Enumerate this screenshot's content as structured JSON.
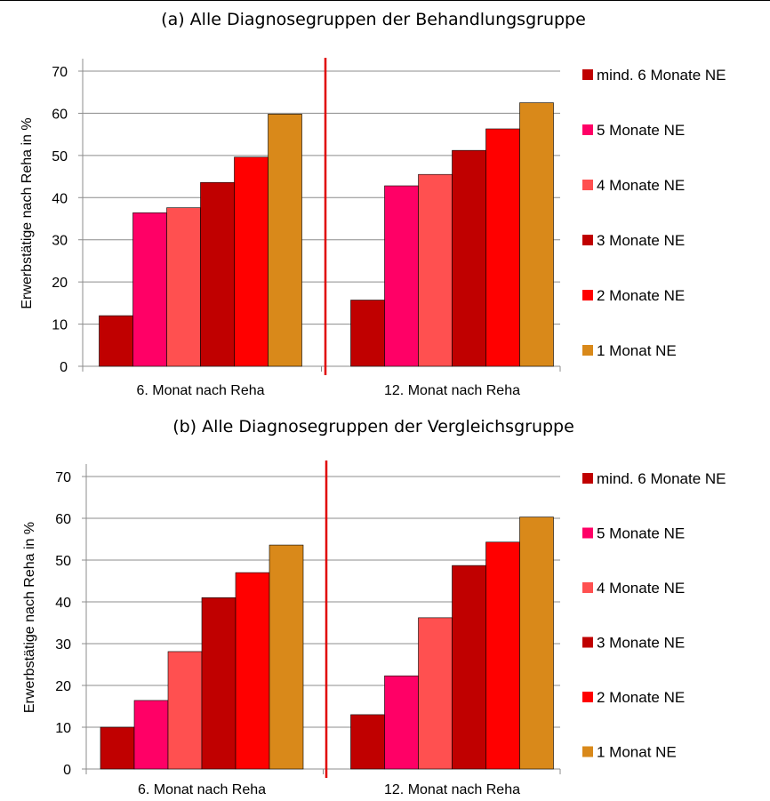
{
  "chart_data": [
    {
      "type": "bar",
      "title": "(a) Alle Diagnosegruppen der Behandlungsgruppe",
      "ylabel": "Erwerbstätige nach Reha in %",
      "xlabel": "",
      "ylim": [
        0,
        70
      ],
      "yticks": [
        "0",
        "10",
        "20",
        "30",
        "40",
        "50",
        "60",
        "70"
      ],
      "grid": true,
      "legend_position": "right",
      "categories": [
        "6. Monat nach Reha",
        "12. Monat nach Reha"
      ],
      "series": [
        {
          "name": "mind. 6 Monate NE",
          "color": "#C00000",
          "values": [
            12,
            15.7
          ]
        },
        {
          "name": "5 Monate NE",
          "color": "#FF0066",
          "values": [
            36.4,
            42.8
          ]
        },
        {
          "name": "4 Monate NE",
          "color": "#FF5050",
          "values": [
            37.6,
            45.5
          ]
        },
        {
          "name": "3 Monate NE",
          "color": "#C00000",
          "values": [
            43.6,
            51.2
          ]
        },
        {
          "name": "2 Monate NE",
          "color": "#FF0000",
          "values": [
            49.6,
            56.3
          ]
        },
        {
          "name": "1 Monat NE",
          "color": "#D9891A",
          "values": [
            59.8,
            62.5
          ]
        }
      ]
    },
    {
      "type": "bar",
      "title": "(b) Alle Diagnosegruppen der Vergleichsgruppe",
      "ylabel": "Erwerbstätige nach Reha in %",
      "xlabel": "",
      "ylim": [
        0,
        70
      ],
      "yticks": [
        "0",
        "10",
        "20",
        "30",
        "40",
        "50",
        "60",
        "70"
      ],
      "grid": true,
      "legend_position": "right",
      "categories": [
        "6. Monat nach Reha",
        "12. Monat nach Reha"
      ],
      "series": [
        {
          "name": "mind. 6 Monate NE",
          "color": "#C00000",
          "values": [
            10,
            13
          ]
        },
        {
          "name": "5 Monate NE",
          "color": "#FF0066",
          "values": [
            16.4,
            22.3
          ]
        },
        {
          "name": "4 Monate NE",
          "color": "#FF5050",
          "values": [
            28.1,
            36.2
          ]
        },
        {
          "name": "3 Monate NE",
          "color": "#C00000",
          "values": [
            41,
            48.7
          ]
        },
        {
          "name": "2 Monate NE",
          "color": "#FF0000",
          "values": [
            47,
            54.3
          ]
        },
        {
          "name": "1 Monat NE",
          "color": "#D9891A",
          "values": [
            53.6,
            60.3
          ]
        }
      ]
    }
  ],
  "divider_color": "#E00000"
}
